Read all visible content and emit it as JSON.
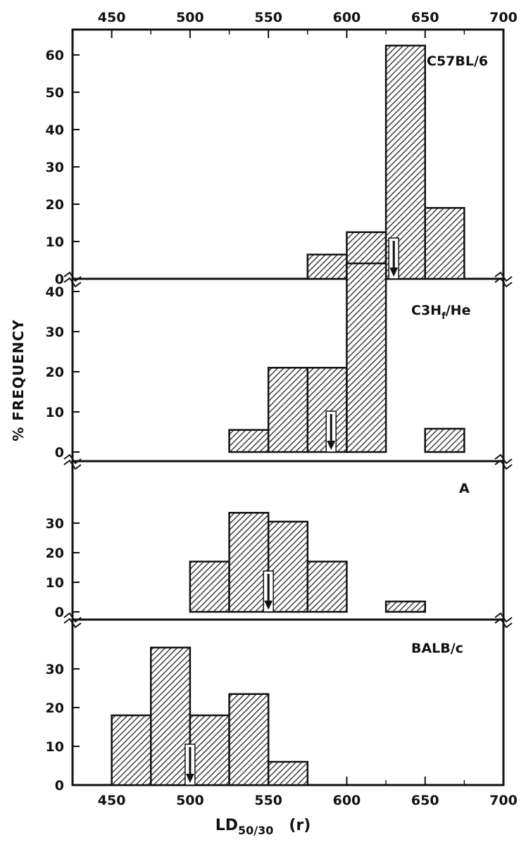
{
  "chart_data": {
    "type": "bar",
    "x_axis": {
      "ticks": [
        450,
        500,
        550,
        600,
        650,
        700
      ],
      "range": [
        425,
        700
      ],
      "label_main": "LD",
      "label_sub": "50/30",
      "label_unit": "(r)",
      "top_ticks_mirrored": true
    },
    "y_axis_label": "% FREQUENCY",
    "bin_width": 25,
    "grid": false,
    "hatched_bars": true,
    "panels": [
      {
        "name": "C57BL/6",
        "y_ticks": [
          0,
          10,
          20,
          30,
          40,
          50,
          60
        ],
        "y_range": [
          0,
          65
        ],
        "bins": [
          {
            "x_start": 575,
            "value": 6.5
          },
          {
            "x_start": 600,
            "value": 12.5
          },
          {
            "x_start": 625,
            "value": 62.5
          },
          {
            "x_start": 650,
            "value": 19
          }
        ],
        "mean_arrow": 630
      },
      {
        "name": "C3Hf/He",
        "label_main": "C3H",
        "label_sub": "f",
        "label_tail": "/He",
        "y_ticks": [
          0,
          10,
          20,
          30,
          40
        ],
        "y_range": [
          0,
          48
        ],
        "bins": [
          {
            "x_start": 525,
            "value": 5.5
          },
          {
            "x_start": 550,
            "value": 21
          },
          {
            "x_start": 575,
            "value": 21
          },
          {
            "x_start": 600,
            "value": 47
          },
          {
            "x_start": 650,
            "value": 5.8
          }
        ],
        "mean_arrow": 590
      },
      {
        "name": "A",
        "y_ticks": [
          0,
          10,
          20,
          30
        ],
        "y_range": [
          0,
          37
        ],
        "bins": [
          {
            "x_start": 500,
            "value": 17
          },
          {
            "x_start": 525,
            "value": 33.5
          },
          {
            "x_start": 550,
            "value": 30.5
          },
          {
            "x_start": 575,
            "value": 17
          },
          {
            "x_start": 625,
            "value": 3.5
          }
        ],
        "mean_arrow": 550
      },
      {
        "name": "BALB/c",
        "y_ticks": [
          0,
          10,
          20,
          30
        ],
        "y_range": [
          0,
          37
        ],
        "bins": [
          {
            "x_start": 450,
            "value": 18
          },
          {
            "x_start": 475,
            "value": 35.5
          },
          {
            "x_start": 500,
            "value": 18
          },
          {
            "x_start": 525,
            "value": 23.5
          },
          {
            "x_start": 550,
            "value": 6
          }
        ],
        "mean_arrow": 500
      }
    ]
  }
}
